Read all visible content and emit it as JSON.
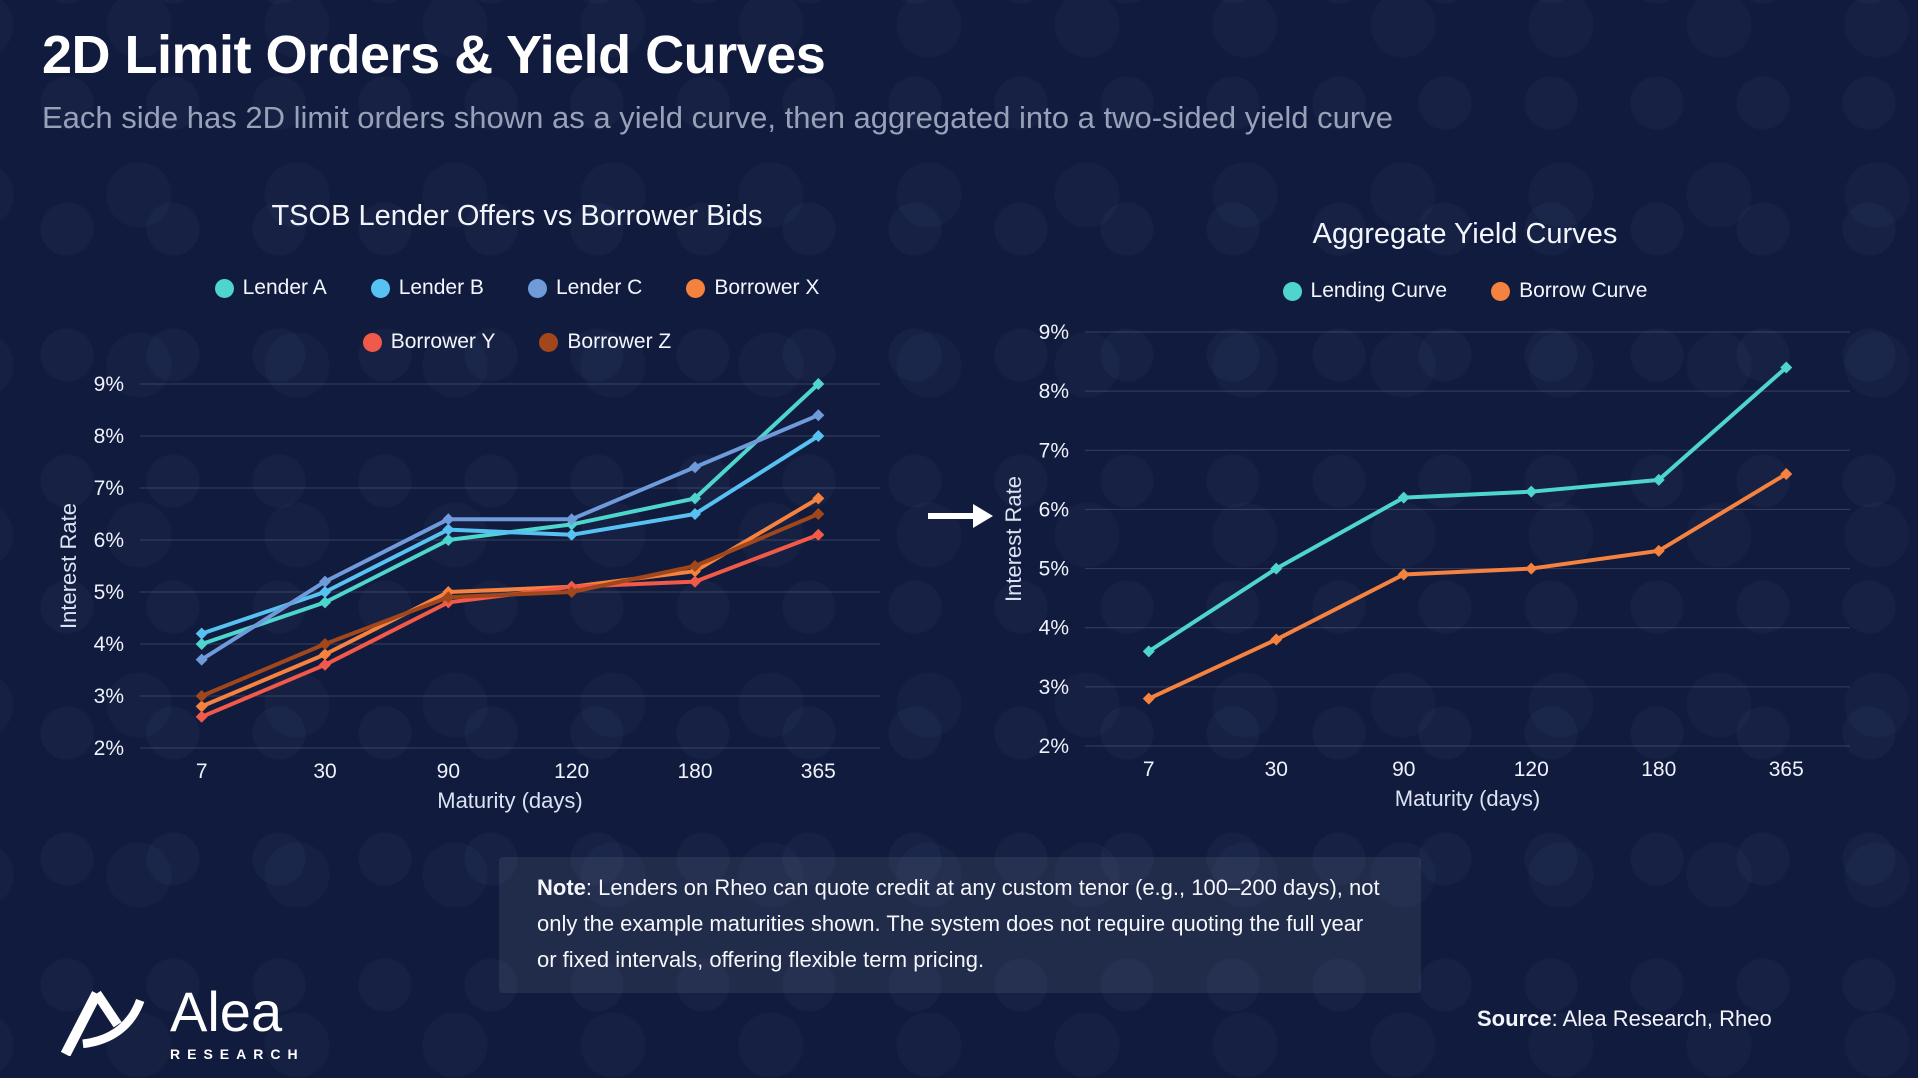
{
  "header": {
    "title": "2D Limit Orders & Yield Curves",
    "subtitle": "Each side has 2D limit orders shown as a yield curve, then aggregated into a two-sided yield curve"
  },
  "note": {
    "label": "Note",
    "text": ": Lenders on Rheo can quote credit at any custom tenor (e.g., 100–200 days), not only the example maturities shown. The system does not require quoting the full year or fixed intervals, offering flexible term pricing."
  },
  "footer": {
    "logo_text": "Alea",
    "logo_subtext": "RESEARCH",
    "source_label": "Source",
    "source_text": ": Alea Research, Rheo"
  },
  "icons": {
    "arrow": "arrow-right-icon",
    "logo_mark": "alea-logo-mark"
  },
  "colors": {
    "background": "#111b3d",
    "panel": "rgba(255,255,255,0.07)",
    "grid": "rgba(255,255,255,0.16)",
    "tick_text": "#eef2fa",
    "axis_text": "#dbe2f1",
    "title_text": "#ffffff",
    "subtitle_text": "#98a1b8",
    "accent_teal": "#4ed5cd",
    "accent_orange": "#f5823e",
    "arrow_color": "#ffffff"
  },
  "chart_data": [
    {
      "type": "line",
      "title": "TSOB Lender Offers vs Borrower Bids",
      "xlabel": "Maturity (days)",
      "ylabel": "Interest Rate",
      "categories": [
        "7",
        "30",
        "90",
        "120",
        "180",
        "365"
      ],
      "ylim": [
        2,
        9
      ],
      "ytick_labels": [
        "2%",
        "3%",
        "4%",
        "5%",
        "6%",
        "7%",
        "8%",
        "9%"
      ],
      "grid": true,
      "legend_position": "top",
      "marker": "diamond",
      "series": [
        {
          "name": "Lender A",
          "color": "#4ed5cd",
          "values": [
            4.0,
            4.8,
            6.0,
            6.3,
            6.8,
            9.0
          ]
        },
        {
          "name": "Lender B",
          "color": "#57c2f2",
          "values": [
            4.2,
            5.0,
            6.2,
            6.1,
            6.5,
            8.0
          ]
        },
        {
          "name": "Lender C",
          "color": "#6f9bdb",
          "values": [
            3.7,
            5.2,
            6.4,
            6.4,
            7.4,
            8.4
          ]
        },
        {
          "name": "Borrower X",
          "color": "#f5823e",
          "values": [
            2.8,
            3.8,
            5.0,
            5.1,
            5.4,
            6.8
          ]
        },
        {
          "name": "Borrower Y",
          "color": "#f15948",
          "values": [
            2.6,
            3.6,
            4.8,
            5.1,
            5.2,
            6.1
          ]
        },
        {
          "name": "Borrower Z",
          "color": "#a2471b",
          "values": [
            3.0,
            4.0,
            4.9,
            5.0,
            5.5,
            6.5
          ]
        }
      ]
    },
    {
      "type": "line",
      "title": "Aggregate Yield Curves",
      "xlabel": "Maturity (days)",
      "ylabel": "Interest Rate",
      "categories": [
        "7",
        "30",
        "90",
        "120",
        "180",
        "365"
      ],
      "ylim": [
        2,
        9
      ],
      "ytick_labels": [
        "2%",
        "3%",
        "4%",
        "5%",
        "6%",
        "7%",
        "8%",
        "9%"
      ],
      "grid": true,
      "legend_position": "top",
      "marker": "diamond",
      "series": [
        {
          "name": "Lending Curve",
          "color": "#4ed5cd",
          "values": [
            3.6,
            5.0,
            6.2,
            6.3,
            6.5,
            8.4
          ]
        },
        {
          "name": "Borrow Curve",
          "color": "#f5823e",
          "values": [
            2.8,
            3.8,
            4.9,
            5.0,
            5.3,
            6.6
          ]
        }
      ]
    }
  ]
}
